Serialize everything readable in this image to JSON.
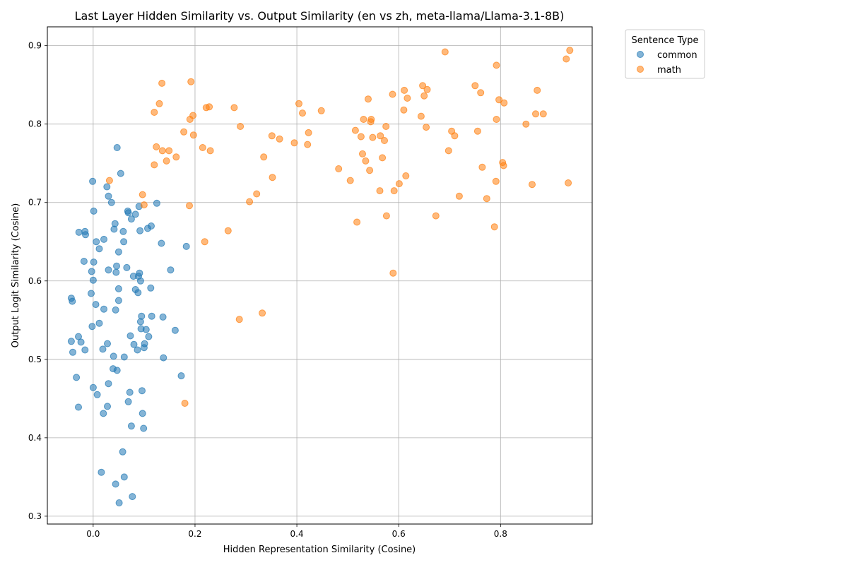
{
  "chart_data": {
    "type": "scatter",
    "title": "Last Layer Hidden Similarity vs. Output Similarity (en vs zh, meta-llama/Llama-3.1-8B)",
    "xlabel": "Hidden Representation Similarity (Cosine)",
    "ylabel": "Output Logit Similarity (Cosine)",
    "xlim": [
      -0.09,
      0.98
    ],
    "ylim": [
      0.29,
      0.924
    ],
    "xticks": [
      0.0,
      0.2,
      0.4,
      0.6,
      0.8
    ],
    "xtick_labels": [
      "0.0",
      "0.2",
      "0.4",
      "0.6",
      "0.8"
    ],
    "yticks": [
      0.3,
      0.4,
      0.5,
      0.6,
      0.7,
      0.8,
      0.9
    ],
    "ytick_labels": [
      "0.3",
      "0.4",
      "0.5",
      "0.6",
      "0.7",
      "0.8",
      "0.9"
    ],
    "grid": true,
    "legend": {
      "title": "Sentence Type",
      "placement": "upper-right-outside"
    },
    "series": [
      {
        "name": "common",
        "color": "#1f77b4",
        "points": [
          [
            0.047,
            0.77
          ],
          [
            0.054,
            0.737
          ],
          [
            -0.001,
            0.727
          ],
          [
            0.027,
            0.72
          ],
          [
            0.03,
            0.708
          ],
          [
            0.036,
            0.7
          ],
          [
            0.125,
            0.699
          ],
          [
            0.09,
            0.695
          ],
          [
            0.001,
            0.689
          ],
          [
            0.068,
            0.689
          ],
          [
            0.069,
            0.687
          ],
          [
            0.083,
            0.685
          ],
          [
            0.075,
            0.679
          ],
          [
            0.043,
            0.673
          ],
          [
            0.114,
            0.67
          ],
          [
            0.107,
            0.667
          ],
          [
            0.041,
            0.666
          ],
          [
            0.059,
            0.663
          ],
          [
            0.092,
            0.664
          ],
          [
            -0.016,
            0.663
          ],
          [
            -0.028,
            0.662
          ],
          [
            -0.015,
            0.659
          ],
          [
            0.021,
            0.653
          ],
          [
            0.006,
            0.65
          ],
          [
            0.06,
            0.65
          ],
          [
            0.134,
            0.648
          ],
          [
            0.183,
            0.644
          ],
          [
            0.012,
            0.641
          ],
          [
            0.05,
            0.637
          ],
          [
            -0.018,
            0.625
          ],
          [
            0.001,
            0.624
          ],
          [
            0.046,
            0.619
          ],
          [
            0.066,
            0.617
          ],
          [
            0.03,
            0.614
          ],
          [
            0.152,
            0.614
          ],
          [
            -0.003,
            0.612
          ],
          [
            0.045,
            0.611
          ],
          [
            0.091,
            0.61
          ],
          [
            0.079,
            0.606
          ],
          [
            0.089,
            0.606
          ],
          [
            0.0,
            0.601
          ],
          [
            0.093,
            0.6
          ],
          [
            0.113,
            0.591
          ],
          [
            0.05,
            0.59
          ],
          [
            0.083,
            0.589
          ],
          [
            0.088,
            0.585
          ],
          [
            -0.004,
            0.584
          ],
          [
            -0.043,
            0.578
          ],
          [
            -0.041,
            0.574
          ],
          [
            0.05,
            0.575
          ],
          [
            0.005,
            0.57
          ],
          [
            0.021,
            0.564
          ],
          [
            0.044,
            0.563
          ],
          [
            0.095,
            0.555
          ],
          [
            0.115,
            0.555
          ],
          [
            0.137,
            0.554
          ],
          [
            0.093,
            0.548
          ],
          [
            0.012,
            0.546
          ],
          [
            -0.002,
            0.542
          ],
          [
            0.094,
            0.539
          ],
          [
            0.104,
            0.538
          ],
          [
            0.161,
            0.537
          ],
          [
            0.073,
            0.53
          ],
          [
            0.109,
            0.529
          ],
          [
            -0.029,
            0.529
          ],
          [
            -0.043,
            0.523
          ],
          [
            -0.024,
            0.522
          ],
          [
            0.101,
            0.52
          ],
          [
            0.028,
            0.52
          ],
          [
            0.08,
            0.519
          ],
          [
            0.1,
            0.515
          ],
          [
            0.019,
            0.513
          ],
          [
            -0.016,
            0.512
          ],
          [
            0.087,
            0.512
          ],
          [
            -0.04,
            0.509
          ],
          [
            0.04,
            0.504
          ],
          [
            0.061,
            0.503
          ],
          [
            0.138,
            0.502
          ],
          [
            0.039,
            0.488
          ],
          [
            0.047,
            0.486
          ],
          [
            0.173,
            0.479
          ],
          [
            -0.033,
            0.477
          ],
          [
            0.03,
            0.469
          ],
          [
            0.0,
            0.464
          ],
          [
            0.096,
            0.46
          ],
          [
            0.072,
            0.458
          ],
          [
            0.008,
            0.455
          ],
          [
            0.069,
            0.446
          ],
          [
            0.028,
            0.44
          ],
          [
            -0.029,
            0.439
          ],
          [
            0.02,
            0.431
          ],
          [
            0.097,
            0.431
          ],
          [
            0.075,
            0.415
          ],
          [
            0.099,
            0.412
          ],
          [
            0.058,
            0.382
          ],
          [
            0.016,
            0.356
          ],
          [
            0.061,
            0.35
          ],
          [
            0.044,
            0.341
          ],
          [
            0.077,
            0.325
          ],
          [
            0.051,
            0.317
          ]
        ]
      },
      {
        "name": "math",
        "color": "#ff7f0e",
        "points": [
          [
            0.936,
            0.894
          ],
          [
            0.691,
            0.892
          ],
          [
            0.929,
            0.883
          ],
          [
            0.792,
            0.875
          ],
          [
            0.192,
            0.854
          ],
          [
            0.135,
            0.852
          ],
          [
            0.647,
            0.849
          ],
          [
            0.75,
            0.849
          ],
          [
            0.656,
            0.844
          ],
          [
            0.611,
            0.843
          ],
          [
            0.872,
            0.843
          ],
          [
            0.761,
            0.84
          ],
          [
            0.588,
            0.838
          ],
          [
            0.65,
            0.836
          ],
          [
            0.54,
            0.832
          ],
          [
            0.617,
            0.833
          ],
          [
            0.797,
            0.831
          ],
          [
            0.807,
            0.827
          ],
          [
            0.13,
            0.826
          ],
          [
            0.404,
            0.826
          ],
          [
            0.228,
            0.822
          ],
          [
            0.222,
            0.821
          ],
          [
            0.277,
            0.821
          ],
          [
            0.61,
            0.818
          ],
          [
            0.448,
            0.817
          ],
          [
            0.12,
            0.815
          ],
          [
            0.411,
            0.814
          ],
          [
            0.869,
            0.813
          ],
          [
            0.884,
            0.813
          ],
          [
            0.196,
            0.811
          ],
          [
            0.644,
            0.81
          ],
          [
            0.19,
            0.806
          ],
          [
            0.531,
            0.806
          ],
          [
            0.546,
            0.806
          ],
          [
            0.792,
            0.806
          ],
          [
            0.545,
            0.803
          ],
          [
            0.85,
            0.8
          ],
          [
            0.289,
            0.797
          ],
          [
            0.575,
            0.797
          ],
          [
            0.654,
            0.796
          ],
          [
            0.515,
            0.792
          ],
          [
            0.704,
            0.791
          ],
          [
            0.755,
            0.791
          ],
          [
            0.178,
            0.79
          ],
          [
            0.423,
            0.789
          ],
          [
            0.197,
            0.786
          ],
          [
            0.351,
            0.785
          ],
          [
            0.564,
            0.785
          ],
          [
            0.71,
            0.785
          ],
          [
            0.526,
            0.784
          ],
          [
            0.549,
            0.783
          ],
          [
            0.366,
            0.781
          ],
          [
            0.572,
            0.779
          ],
          [
            0.395,
            0.776
          ],
          [
            0.421,
            0.774
          ],
          [
            0.124,
            0.771
          ],
          [
            0.215,
            0.77
          ],
          [
            0.136,
            0.766
          ],
          [
            0.149,
            0.766
          ],
          [
            0.23,
            0.766
          ],
          [
            0.698,
            0.766
          ],
          [
            0.529,
            0.762
          ],
          [
            0.163,
            0.758
          ],
          [
            0.335,
            0.758
          ],
          [
            0.568,
            0.757
          ],
          [
            0.144,
            0.753
          ],
          [
            0.535,
            0.753
          ],
          [
            0.804,
            0.751
          ],
          [
            0.12,
            0.748
          ],
          [
            0.806,
            0.747
          ],
          [
            0.764,
            0.745
          ],
          [
            0.482,
            0.743
          ],
          [
            0.543,
            0.741
          ],
          [
            0.614,
            0.734
          ],
          [
            0.352,
            0.732
          ],
          [
            0.032,
            0.728
          ],
          [
            0.505,
            0.728
          ],
          [
            0.791,
            0.727
          ],
          [
            0.933,
            0.725
          ],
          [
            0.601,
            0.724
          ],
          [
            0.862,
            0.723
          ],
          [
            0.563,
            0.715
          ],
          [
            0.591,
            0.715
          ],
          [
            0.321,
            0.711
          ],
          [
            0.097,
            0.71
          ],
          [
            0.719,
            0.708
          ],
          [
            0.773,
            0.705
          ],
          [
            0.307,
            0.701
          ],
          [
            0.1,
            0.697
          ],
          [
            0.189,
            0.696
          ],
          [
            0.576,
            0.683
          ],
          [
            0.673,
            0.683
          ],
          [
            0.518,
            0.675
          ],
          [
            0.788,
            0.669
          ],
          [
            0.265,
            0.664
          ],
          [
            0.219,
            0.65
          ],
          [
            0.589,
            0.61
          ],
          [
            0.332,
            0.559
          ],
          [
            0.287,
            0.551
          ],
          [
            0.18,
            0.444
          ]
        ]
      }
    ]
  }
}
